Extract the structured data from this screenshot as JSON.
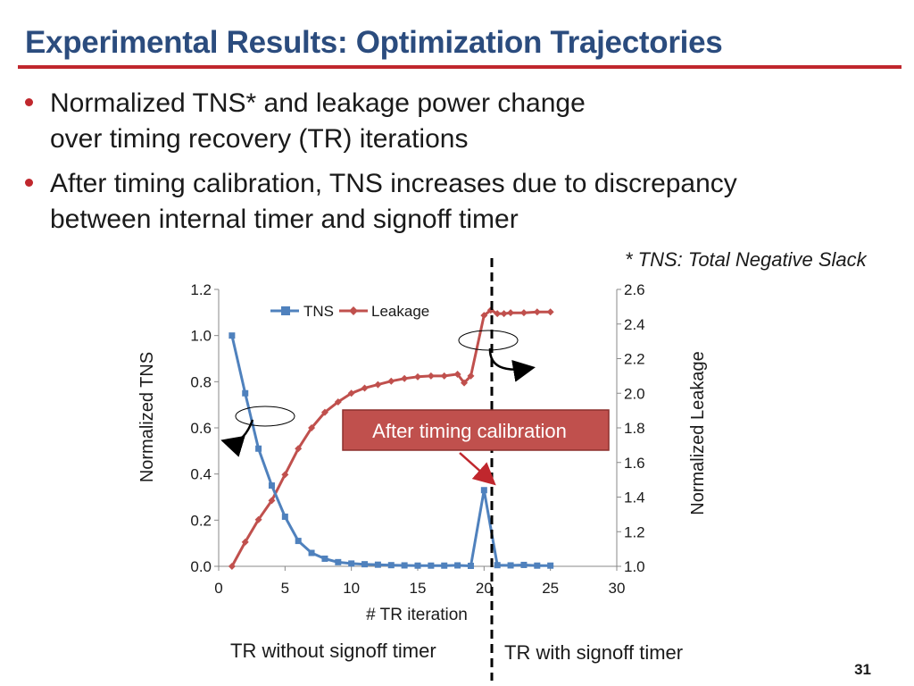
{
  "slide": {
    "title": "Experimental Results: Optimization Trajectories",
    "bullets": [
      "Normalized TNS* and leakage power change\nover timing recovery (TR) iterations",
      "After timing calibration, TNS increases due to discrepancy\nbetween internal timer and signoff timer"
    ],
    "footnote": "* TNS: Total Negative Slack",
    "page_number": "31",
    "annotation": "After timing calibration",
    "region_left_label": "TR without signoff timer",
    "region_right_label": "TR with signoff timer",
    "colors": {
      "title": "#2b4c7e",
      "accent": "#c0272d",
      "tns": "#4f81bd",
      "leakage": "#c0504d"
    }
  },
  "chart_data": {
    "type": "line",
    "xlabel": "# TR iteration",
    "ylabel": "Normalized TNS",
    "y2label": "Normalized  Leakage",
    "xlim": [
      0,
      30
    ],
    "ylim": [
      0,
      1.2
    ],
    "y2lim": [
      1.0,
      2.6
    ],
    "xticks": [
      0,
      5,
      10,
      15,
      20,
      25,
      30
    ],
    "yticks": [
      0.0,
      0.2,
      0.4,
      0.6,
      0.8,
      1.0,
      1.2
    ],
    "y2ticks": [
      1.0,
      1.2,
      1.4,
      1.6,
      1.8,
      2.0,
      2.2,
      2.4,
      2.6
    ],
    "legend": "top-left",
    "grid": false,
    "series": [
      {
        "name": "TNS",
        "axis": "left",
        "marker": "square",
        "x": [
          1,
          2,
          3,
          4,
          5,
          6,
          7,
          8,
          9,
          10,
          11,
          12,
          13,
          14,
          15,
          16,
          17,
          18,
          19,
          20,
          21,
          22,
          23,
          24,
          25
        ],
        "y": [
          1.0,
          0.75,
          0.51,
          0.35,
          0.215,
          0.11,
          0.058,
          0.033,
          0.018,
          0.012,
          0.009,
          0.007,
          0.005,
          0.004,
          0.003,
          0.003,
          0.003,
          0.004,
          0.002,
          0.33,
          0.005,
          0.004,
          0.006,
          0.003,
          0.003
        ]
      },
      {
        "name": "Leakage",
        "axis": "right",
        "marker": "diamond",
        "x": [
          1,
          2,
          3,
          4,
          5,
          6,
          7,
          8,
          9,
          10,
          11,
          12,
          13,
          14,
          15,
          16,
          17,
          18,
          18.5,
          19,
          20,
          20.5,
          21,
          21.5,
          22,
          23,
          24,
          25
        ],
        "y": [
          1.0,
          1.14,
          1.27,
          1.38,
          1.53,
          1.68,
          1.8,
          1.89,
          1.95,
          2.0,
          2.03,
          2.05,
          2.07,
          2.085,
          2.095,
          2.1,
          2.1,
          2.11,
          2.06,
          2.1,
          2.45,
          2.48,
          2.46,
          2.46,
          2.465,
          2.465,
          2.47,
          2.47
        ]
      }
    ]
  }
}
